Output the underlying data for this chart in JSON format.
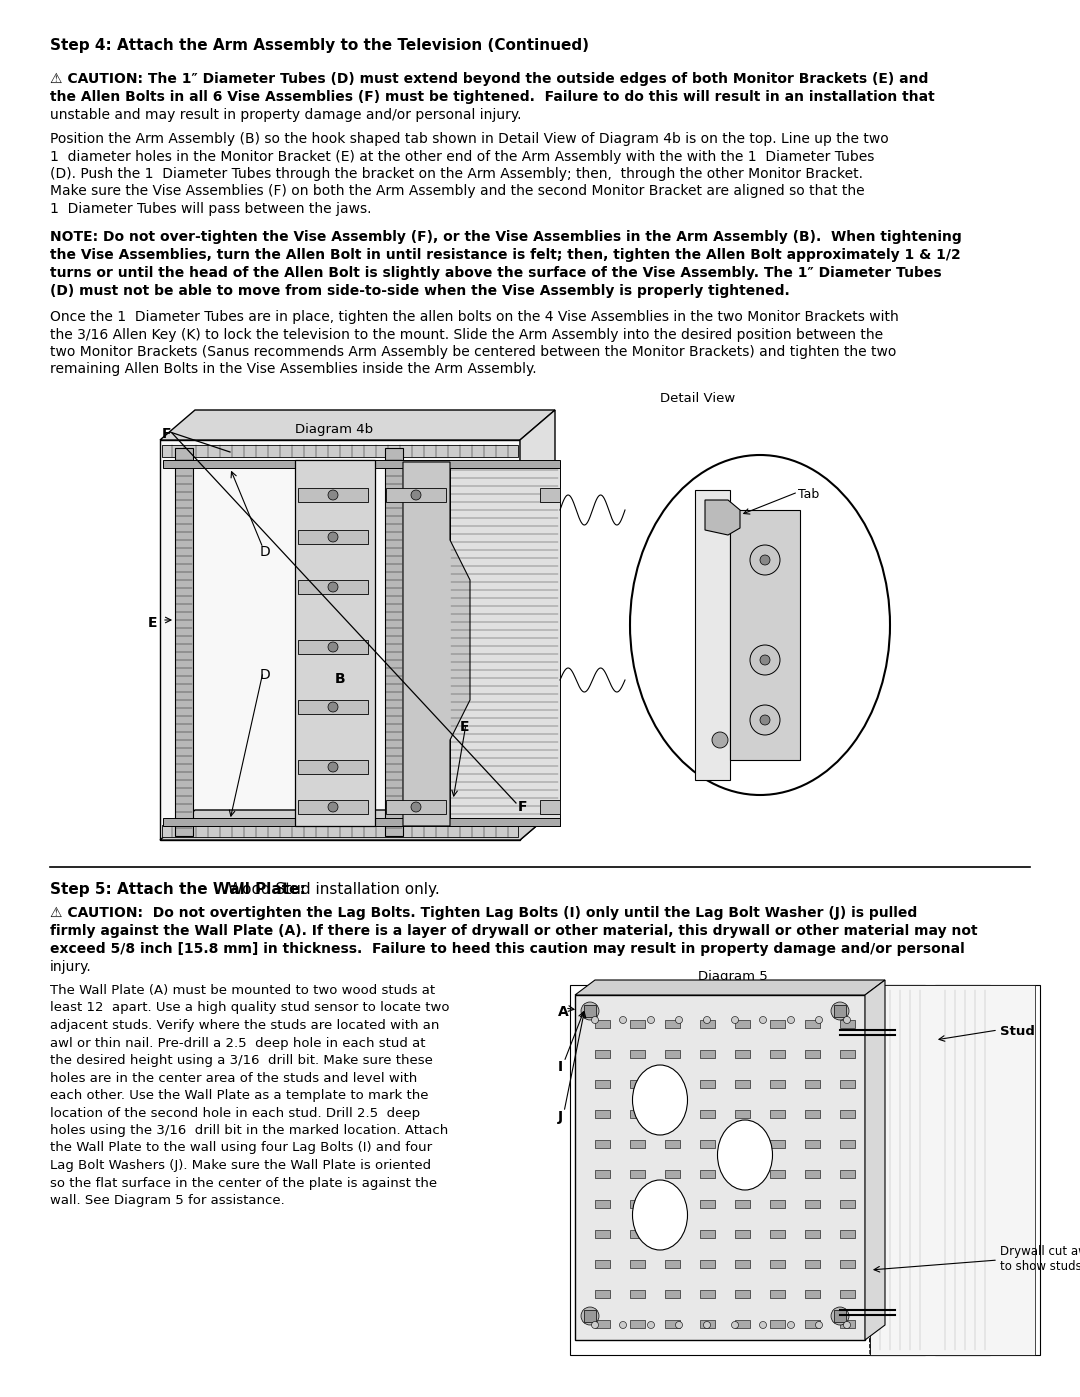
{
  "background_color": "#ffffff",
  "page_width": 10.8,
  "page_height": 13.97,
  "text_color": "#000000",
  "step4_heading": "Step 4: Attach the Arm Assembly to the Television (Continued)",
  "caution1_line1": "⚠ CAUTION: The 1″ Diameter Tubes (D) must extend beyond the outside edges of both Monitor Brackets (E) and",
  "caution1_line2": "the Allen Bolts in all 6 Vise Assemblies (F) must be tightened.  Failure to do this will result in an installation that",
  "caution1_line3": "unstable and may result in property damage and/or personal injury.",
  "para1_lines": [
    "Position the Arm Assembly (B) so the hook shaped tab shown in Detail View of Diagram 4b is on the top. Line up the two",
    "1  diameter holes in the Monitor Bracket (E) at the other end of the Arm Assembly with the with the 1  Diameter Tubes",
    "(D). Push the 1  Diameter Tubes through the bracket on the Arm Assembly; then,  through the other Monitor Bracket.",
    "Make sure the Vise Assemblies (F) on both the Arm Assembly and the second Monitor Bracket are aligned so that the",
    "1  Diameter Tubes will pass between the jaws."
  ],
  "note_lines": [
    "NOTE: Do not over-tighten the Vise Assembly (F), or the Vise Assemblies in the Arm Assembly (B).  When tightening",
    "the Vise Assemblies, turn the Allen Bolt in until resistance is felt; then, tighten the Allen Bolt approximately 1 & 1/2",
    "turns or until the head of the Allen Bolt is slightly above the surface of the Vise Assembly. The 1″ Diameter Tubes",
    "(D) must not be able to move from side-to-side when the Vise Assembly is properly tightened."
  ],
  "para2_lines": [
    "Once the 1  Diameter Tubes are in place, tighten the allen bolts on the 4 Vise Assemblies in the two Monitor Brackets with",
    "the 3/16 Allen Key (K) to lock the television to the mount. Slide the Arm Assembly into the desired position between the",
    "two Monitor Brackets (Sanus recommends Arm Assembly be centered between the Monitor Brackets) and tighten the two",
    "remaining Allen Bolts in the Vise Assemblies inside the Arm Assembly."
  ],
  "diagram4b_label": "Diagram 4b",
  "detail_view_label": "Detail View",
  "tab_label": "Tab",
  "step5_bold": "Step 5: Attach the Wall Plate:",
  "step5_normal": " Wood Stud installation only.",
  "caution2_lines": [
    "⚠ CAUTION:  Do not overtighten the Lag Bolts. Tighten Lag Bolts (I) only until the Lag Bolt Washer (J) is pulled",
    "firmly against the Wall Plate (A). If there is a layer of drywall or other material, this drywall or other material may not",
    "exceed 5/8 inch [15.8 mm] in thickness.  Failure to heed this caution may result in property damage and/or personal",
    "injury."
  ],
  "para3_lines": [
    "The Wall Plate (A) must be mounted to two wood studs at",
    "least 12  apart. Use a high quality stud sensor to locate two",
    "adjacent studs. Verify where the studs are located with an",
    "awl or thin nail. Pre-drill a 2.5  deep hole in each stud at",
    "the desired height using a 3/16  drill bit. Make sure these",
    "holes are in the center area of the studs and level with",
    "each other. Use the Wall Plate as a template to mark the",
    "location of the second hole in each stud. Drill 2.5  deep",
    "holes using the 3/16  drill bit in the marked location. Attach",
    "the Wall Plate to the wall using four Lag Bolts (I) and four",
    "Lag Bolt Washers (J). Make sure the Wall Plate is oriented",
    "so the flat surface in the center of the plate is against the",
    "wall. See Diagram 5 for assistance."
  ],
  "diagram5_label": "Diagram 5",
  "stud_label": "Stud",
  "drywall_label": "Drywall cut away\nto show studs.",
  "fs_heading": 11,
  "fs_body": 10,
  "fs_bold_body": 10,
  "fs_label": 9.5
}
